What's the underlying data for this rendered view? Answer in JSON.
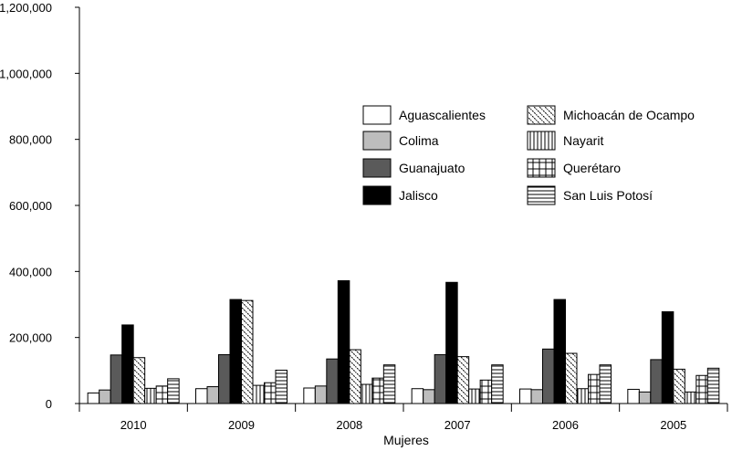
{
  "chart_data": {
    "type": "bar",
    "xlabel": "Mujeres",
    "ylabel": "",
    "ylim": [
      0,
      1200000
    ],
    "yticks": [
      0,
      200000,
      400000,
      600000,
      800000,
      1000000,
      1200000
    ],
    "ytick_labels": [
      "0",
      "200,000",
      "400,000",
      "600,000",
      "800,000",
      "1,000,000",
      "1,200,000"
    ],
    "categories": [
      "2010",
      "2009",
      "2008",
      "2007",
      "2006",
      "2005"
    ],
    "series": [
      {
        "name": "Aguascalientes",
        "pattern": "white",
        "values": [
          32000,
          45000,
          47000,
          45000,
          44000,
          43000
        ]
      },
      {
        "name": "Colima",
        "pattern": "lightgray",
        "values": [
          41000,
          51000,
          53000,
          42000,
          42000,
          35000
        ]
      },
      {
        "name": "Guanajuato",
        "pattern": "darkgray",
        "values": [
          147000,
          148000,
          135000,
          148000,
          165000,
          133000
        ]
      },
      {
        "name": "Jalisco",
        "pattern": "black",
        "values": [
          238000,
          315000,
          372000,
          367000,
          315000,
          278000
        ]
      },
      {
        "name": "Michoacán de Ocampo",
        "pattern": "diagonal",
        "values": [
          139000,
          312000,
          163000,
          142000,
          152000,
          104000
        ]
      },
      {
        "name": "Nayarit",
        "pattern": "vertical",
        "values": [
          46000,
          55000,
          58000,
          44000,
          45000,
          35000
        ]
      },
      {
        "name": "Querétaro",
        "pattern": "grid",
        "values": [
          53000,
          63000,
          77000,
          71000,
          88000,
          85000
        ]
      },
      {
        "name": "San Luis Potosí",
        "pattern": "horizontal",
        "values": [
          75000,
          101000,
          117000,
          117000,
          117000,
          107000
        ]
      }
    ]
  }
}
